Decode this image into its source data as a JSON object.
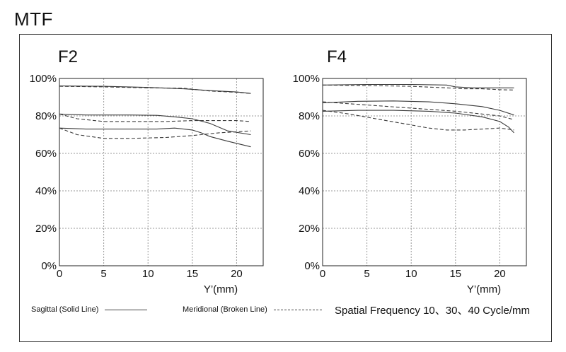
{
  "title": "MTF",
  "chart_data": [
    {
      "type": "line",
      "title": "F2",
      "xlabel": "Y’(mm)",
      "ylabel": "",
      "xlim": [
        0,
        23
      ],
      "ylim": [
        0,
        100
      ],
      "x_ticks": [
        "0",
        "5",
        "10",
        "15",
        "20"
      ],
      "y_ticks": [
        "0%",
        "20%",
        "40%",
        "60%",
        "80%",
        "100%"
      ],
      "grid": true,
      "series": [
        {
          "name": "Sagittal 10",
          "style": "solid",
          "x": [
            0,
            5,
            10,
            14,
            17,
            20,
            21.6
          ],
          "y": [
            96,
            95.8,
            95.2,
            94.5,
            93.5,
            92.8,
            92
          ]
        },
        {
          "name": "Meridional 10",
          "style": "dashed",
          "x": [
            0,
            5,
            10,
            14,
            17,
            20,
            21.6
          ],
          "y": [
            95.8,
            95.5,
            95,
            94.8,
            93.3,
            92.6,
            92
          ]
        },
        {
          "name": "Sagittal 30",
          "style": "solid",
          "x": [
            0,
            3,
            8,
            11,
            13,
            15,
            17,
            19,
            21.6
          ],
          "y": [
            81,
            80.5,
            80.5,
            80.3,
            79.5,
            78.5,
            76,
            72,
            70
          ]
        },
        {
          "name": "Meridional 30",
          "style": "dashed",
          "x": [
            0,
            2,
            5,
            8,
            12,
            15,
            18,
            20,
            21.6
          ],
          "y": [
            81,
            78.5,
            77,
            77,
            77,
            77.5,
            77.5,
            77.5,
            77
          ]
        },
        {
          "name": "Sagittal 40",
          "style": "solid",
          "x": [
            0,
            3,
            8,
            11,
            13,
            15,
            16,
            17,
            19,
            21.6
          ],
          "y": [
            73.5,
            73,
            73,
            73,
            73.5,
            72.5,
            71,
            69,
            66.5,
            63.5
          ]
        },
        {
          "name": "Meridional 40",
          "style": "dashed",
          "x": [
            0,
            2,
            5,
            8,
            12,
            15,
            18,
            20,
            21.6
          ],
          "y": [
            73.5,
            70,
            68,
            68,
            68.5,
            69.5,
            71,
            71.5,
            72
          ]
        }
      ]
    },
    {
      "type": "line",
      "title": "F4",
      "xlabel": "Y’(mm)",
      "ylabel": "",
      "xlim": [
        0,
        23
      ],
      "ylim": [
        0,
        100
      ],
      "x_ticks": [
        "0",
        "5",
        "10",
        "15",
        "20"
      ],
      "y_ticks": [
        "0%",
        "20%",
        "40%",
        "60%",
        "80%",
        "100%"
      ],
      "grid": true,
      "series": [
        {
          "name": "Sagittal 10",
          "style": "solid",
          "x": [
            0,
            5,
            10,
            14,
            15,
            17,
            20,
            21.6
          ],
          "y": [
            96.5,
            96.8,
            96.8,
            96.5,
            95.5,
            95,
            95,
            95
          ]
        },
        {
          "name": "Meridional 10",
          "style": "dashed",
          "x": [
            0,
            5,
            10,
            14,
            16,
            18,
            20,
            21.6
          ],
          "y": [
            96.5,
            96.2,
            95.8,
            95,
            94.5,
            94.5,
            94,
            93.8
          ]
        },
        {
          "name": "Sagittal 30",
          "style": "solid",
          "x": [
            0,
            4,
            8,
            12,
            15,
            18,
            20,
            21.6
          ],
          "y": [
            87,
            87.8,
            88,
            87.5,
            86.5,
            85,
            83,
            80.5
          ]
        },
        {
          "name": "Meridional 30",
          "style": "dashed",
          "x": [
            0,
            3,
            6,
            9,
            12,
            15,
            18,
            20,
            21.6
          ],
          "y": [
            87.5,
            86.5,
            85.5,
            84.5,
            83.5,
            82.5,
            81,
            80,
            78
          ]
        },
        {
          "name": "Sagittal 40",
          "style": "solid",
          "x": [
            0,
            4,
            8,
            12,
            15,
            18,
            20,
            21,
            21.6
          ],
          "y": [
            82.5,
            83,
            83,
            82.5,
            81.5,
            79.5,
            77,
            74,
            71
          ]
        },
        {
          "name": "Meridional 40",
          "style": "dashed",
          "x": [
            0,
            3,
            6,
            9,
            12,
            14,
            16,
            18,
            20,
            21.6
          ],
          "y": [
            83,
            81,
            78.5,
            76,
            73.5,
            72.5,
            72.5,
            73,
            73.5,
            72.5
          ]
        }
      ]
    }
  ],
  "legend": {
    "sagittal": "Sagittal (Solid Line)",
    "meridional": "Meridional (Broken Line)",
    "frequency": "Spatial Frequency 10、30、40  Cycle/mm"
  },
  "colors": {
    "line": "#3a3a3a",
    "grid": "#9a9a9a",
    "axis": "#222222"
  }
}
